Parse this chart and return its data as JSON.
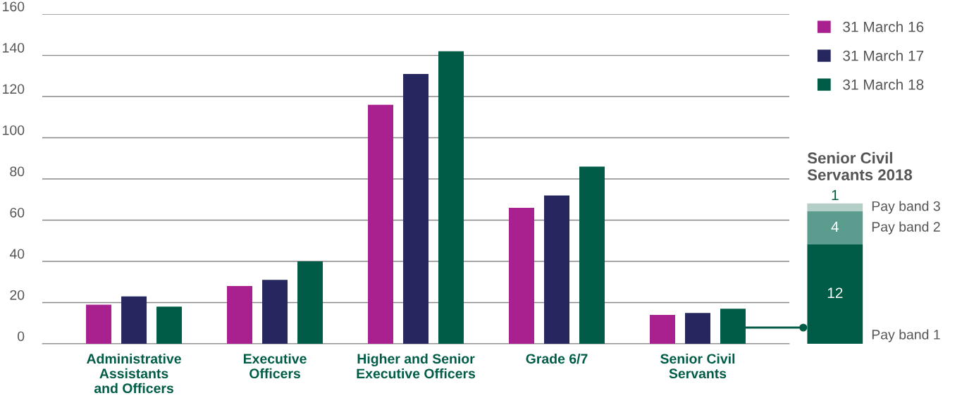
{
  "chart_data": [
    {
      "type": "bar",
      "categories": [
        "Administrative\nAssistants\nand Officers",
        "Executive\nOfficers",
        "Higher and Senior\nExecutive Officers",
        "Grade 6/7",
        "Senior Civil\nServants"
      ],
      "series": [
        {
          "name": "31 March 16",
          "color": "#a8218e",
          "values": [
            19,
            28,
            116,
            66,
            14
          ]
        },
        {
          "name": "31 March 17",
          "color": "#25275e",
          "values": [
            23,
            31,
            131,
            72,
            15
          ]
        },
        {
          "name": "31 March 18",
          "color": "#005c46",
          "values": [
            18,
            40,
            142,
            86,
            17
          ]
        }
      ],
      "ylim": [
        0,
        160
      ],
      "yticks": [
        0,
        20,
        40,
        60,
        80,
        100,
        120,
        140,
        160
      ],
      "grid": "y",
      "legend": "top right"
    },
    {
      "type": "bar",
      "title": "Senior Civil\nServants 2018",
      "stacked": true,
      "categories": [
        null
      ],
      "data_labels": true,
      "series": [
        {
          "name": "Pay band 1",
          "color": "#005c46",
          "values": [
            12
          ]
        },
        {
          "name": "Pay band 2",
          "color": "#5c9c8f",
          "values": [
            4
          ]
        },
        {
          "name": "Pay band 3",
          "color": "#b3cfc8",
          "values": [
            1
          ]
        }
      ]
    }
  ]
}
